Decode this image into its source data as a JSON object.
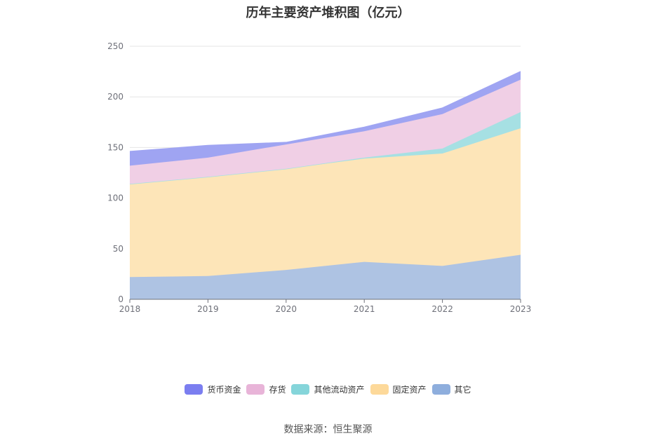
{
  "chart_data": {
    "type": "area",
    "stacked": true,
    "title": "历年主要资产堆积图（亿元）",
    "x": [
      "2018",
      "2019",
      "2020",
      "2021",
      "2022",
      "2023"
    ],
    "ylim": [
      0,
      250
    ],
    "yticks": [
      0,
      50,
      100,
      150,
      200,
      250
    ],
    "grid": true,
    "legend_position": "bottom",
    "series": [
      {
        "name": "其它",
        "color": "#aec3e3",
        "legend_color": "#8eaedd",
        "values": [
          22,
          23,
          29,
          37,
          33,
          44
        ]
      },
      {
        "name": "固定资产",
        "color": "#fde5b8",
        "legend_color": "#fdd99a",
        "values": [
          92,
          98,
          100,
          102,
          111,
          125
        ]
      },
      {
        "name": "其他流动资产",
        "color": "#a6e0e3",
        "legend_color": "#85d5da",
        "values": [
          0,
          0,
          0,
          1,
          5,
          16
        ]
      },
      {
        "name": "存货",
        "color": "#f0cfe5",
        "legend_color": "#e8b4d8",
        "values": [
          18,
          19,
          24,
          26,
          34,
          32
        ]
      },
      {
        "name": "货币资金",
        "color": "#9fa4f2",
        "legend_color": "#7b7ef0",
        "values": [
          14,
          12,
          2,
          4,
          6,
          8
        ]
      }
    ]
  },
  "legend_order": [
    "货币资金",
    "存货",
    "其他流动资产",
    "固定资产",
    "其它"
  ],
  "source_note": "数据来源：恒生聚源"
}
